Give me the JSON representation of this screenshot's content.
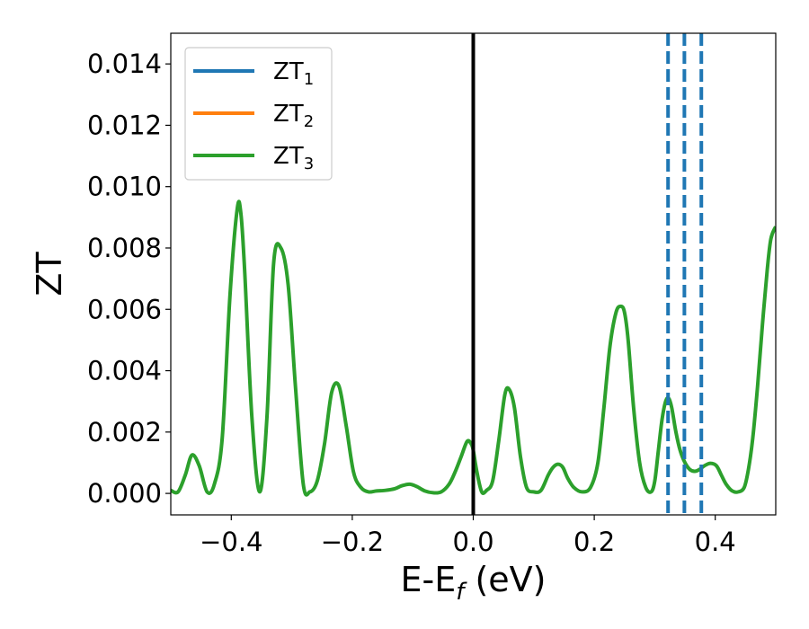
{
  "chart_data": {
    "type": "line",
    "xlabel": "E-E",
    "xlabel_sub": "f",
    "xlabel_suffix": " (eV)",
    "ylabel": "ZT",
    "xlim": [
      -0.5,
      0.5
    ],
    "ylim": [
      -0.0007,
      0.015
    ],
    "xticks": [
      -0.4,
      -0.2,
      0.0,
      0.2,
      0.4
    ],
    "xtick_labels": [
      "−0.4",
      "−0.2",
      "0.0",
      "0.2",
      "0.4"
    ],
    "yticks": [
      0.0,
      0.002,
      0.004,
      0.006,
      0.008,
      0.01,
      0.012,
      0.014
    ],
    "ytick_labels": [
      "0.000",
      "0.002",
      "0.004",
      "0.006",
      "0.008",
      "0.010",
      "0.012",
      "0.014"
    ],
    "legend": {
      "placement": "upper-left",
      "entries": [
        {
          "base": "ZT",
          "sub": "1",
          "color": "#1f77b4"
        },
        {
          "base": "ZT",
          "sub": "2",
          "color": "#ff7f0e"
        },
        {
          "base": "ZT",
          "sub": "3",
          "color": "#2ca02c"
        }
      ]
    },
    "curve_color": "#2ca02c",
    "fermi_line": {
      "x": 0.0,
      "color": "#000000"
    },
    "dashed_lines": {
      "x": [
        0.322,
        0.349,
        0.377
      ],
      "color": "#1f77b4"
    },
    "series": [
      {
        "name": "ZT3",
        "x": [
          -0.5,
          -0.488,
          -0.476,
          -0.465,
          -0.453,
          -0.44,
          -0.428,
          -0.415,
          -0.402,
          -0.39,
          -0.384,
          -0.378,
          -0.366,
          -0.353,
          -0.341,
          -0.33,
          -0.318,
          -0.306,
          -0.294,
          -0.281,
          -0.27,
          -0.258,
          -0.246,
          -0.234,
          -0.222,
          -0.21,
          -0.198,
          -0.186,
          -0.173,
          -0.16,
          -0.145,
          -0.13,
          -0.118,
          -0.105,
          -0.093,
          -0.08,
          -0.066,
          -0.053,
          -0.04,
          -0.03,
          -0.02,
          -0.01,
          -0.003,
          0.0,
          0.006,
          0.014,
          0.022,
          0.032,
          0.042,
          0.052,
          0.059,
          0.068,
          0.078,
          0.088,
          0.1,
          0.112,
          0.124,
          0.132,
          0.14,
          0.148,
          0.156,
          0.166,
          0.18,
          0.194,
          0.206,
          0.216,
          0.226,
          0.236,
          0.244,
          0.25,
          0.256,
          0.265,
          0.275,
          0.285,
          0.294,
          0.3,
          0.306,
          0.312,
          0.318,
          0.323,
          0.328,
          0.335,
          0.342,
          0.35,
          0.358,
          0.366,
          0.374,
          0.382,
          0.392,
          0.402,
          0.41,
          0.418,
          0.428,
          0.438,
          0.448,
          0.455,
          0.462,
          0.47,
          0.478,
          0.486,
          0.492,
          0.5
        ],
        "y": [
          0.0001,
          5e-05,
          0.0006,
          0.00125,
          0.0009,
          5e-05,
          0.0003,
          0.0018,
          0.0065,
          0.0093,
          0.0091,
          0.0073,
          0.0025,
          5e-05,
          0.0025,
          0.0075,
          0.008,
          0.0068,
          0.0035,
          0.0003,
          5e-05,
          0.0004,
          0.0016,
          0.0033,
          0.0035,
          0.0022,
          0.0007,
          0.0002,
          5e-05,
          8e-05,
          0.0001,
          0.00015,
          0.00025,
          0.0003,
          0.00022,
          8e-05,
          2e-05,
          5e-05,
          0.0003,
          0.0007,
          0.0012,
          0.0017,
          0.0016,
          0.0014,
          0.0007,
          5e-05,
          0.0001,
          0.0004,
          0.0017,
          0.0032,
          0.0034,
          0.0028,
          0.0012,
          0.0002,
          5e-05,
          0.0001,
          0.0006,
          0.00085,
          0.00095,
          0.00085,
          0.0005,
          0.0002,
          5e-05,
          0.0002,
          0.001,
          0.0028,
          0.0048,
          0.0059,
          0.0061,
          0.0059,
          0.005,
          0.0028,
          0.001,
          0.0002,
          5e-05,
          0.0004,
          0.0014,
          0.0024,
          0.003,
          0.0031,
          0.0028,
          0.002,
          0.0014,
          0.001,
          0.00078,
          0.00072,
          0.00078,
          0.0009,
          0.00098,
          0.0009,
          0.0006,
          0.0003,
          8e-05,
          5e-05,
          0.0002,
          0.0008,
          0.0018,
          0.0035,
          0.0055,
          0.0073,
          0.0083,
          0.0087
        ]
      }
    ]
  }
}
